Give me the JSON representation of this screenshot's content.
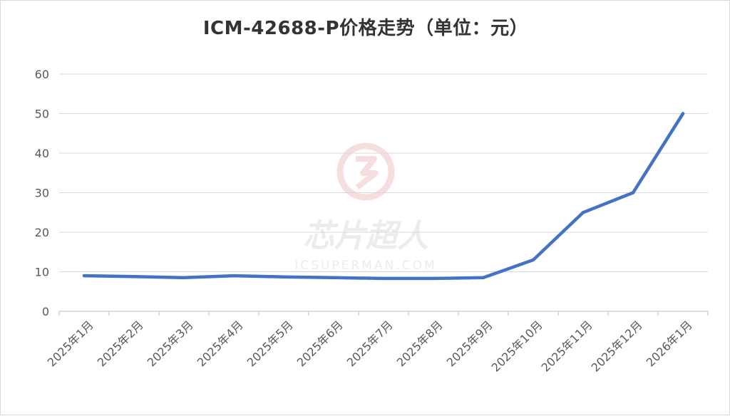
{
  "chart_data": {
    "type": "line",
    "title": "ICM-42688-P价格走势（单位：元）",
    "categories": [
      "2025年1月",
      "2025年2月",
      "2025年3月",
      "2025年4月",
      "2025年5月",
      "2025年6月",
      "2025年7月",
      "2025年8月",
      "2025年9月",
      "2025年10月",
      "2025年11月",
      "2025年12月",
      "2026年1月"
    ],
    "series": [
      {
        "values": [
          9.0,
          8.8,
          8.5,
          9.0,
          8.7,
          8.5,
          8.3,
          8.3,
          8.5,
          13.0,
          25.0,
          30.0,
          50.0
        ],
        "color": "#4472c4"
      }
    ],
    "ylim": [
      0,
      60
    ],
    "yticks": [
      "0",
      "10",
      "20",
      "30",
      "40",
      "50",
      "60"
    ],
    "grid": true,
    "legend": "none"
  },
  "watermark": {
    "text": "芯片超人",
    "subtext": "ICSUPERMAN.COM",
    "color": "#e8a0a0"
  }
}
